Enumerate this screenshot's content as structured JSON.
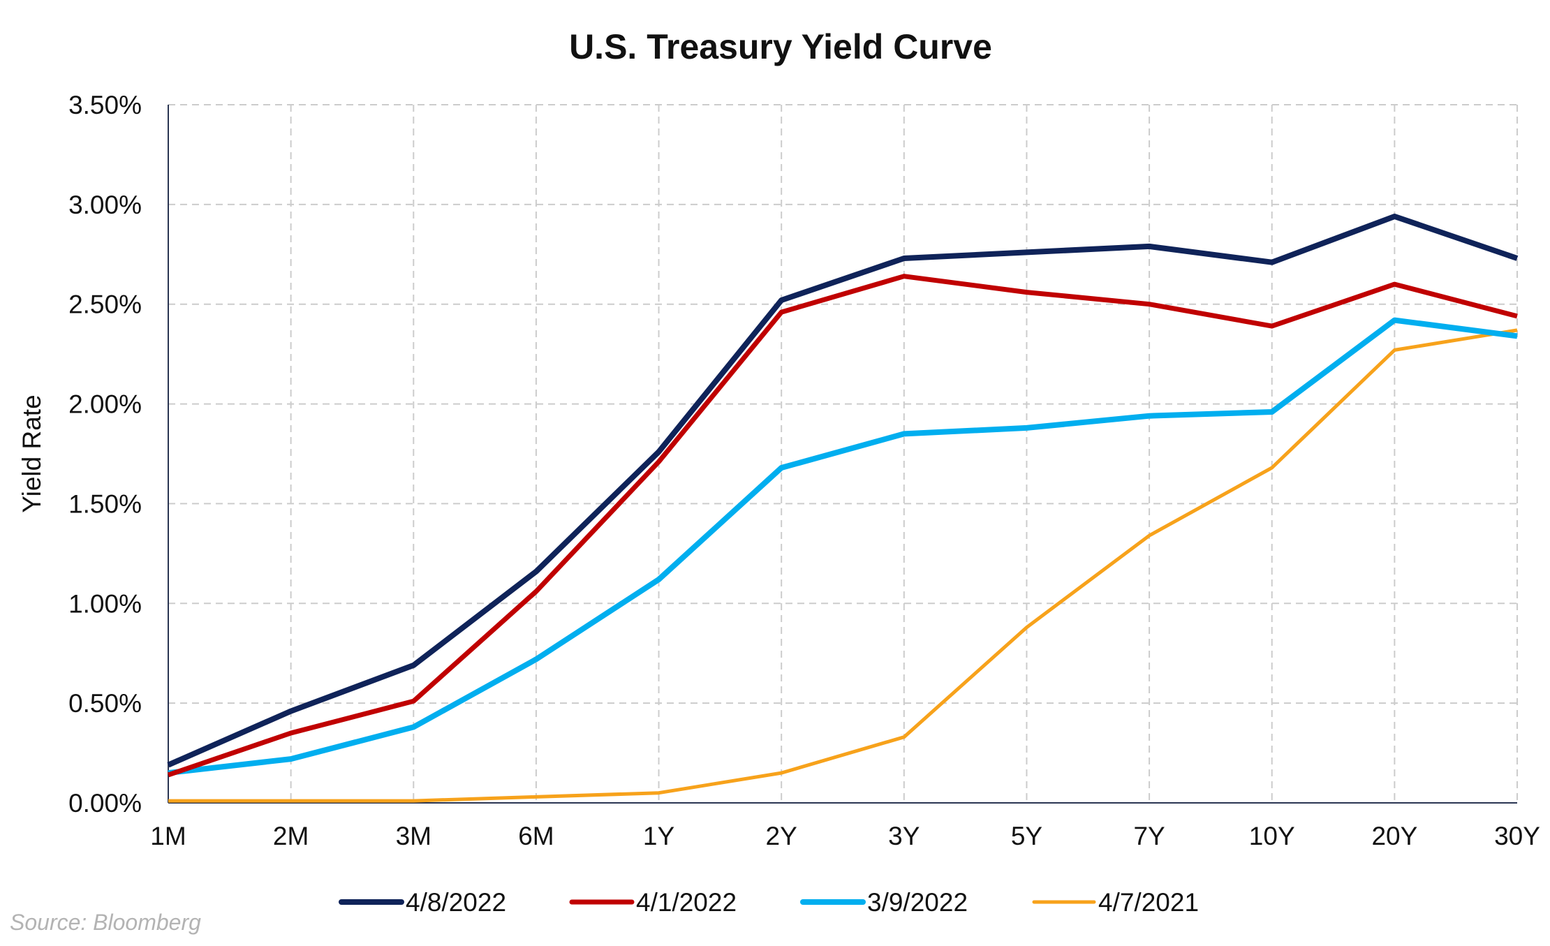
{
  "chart_data": {
    "type": "line",
    "title": "U.S. Treasury Yield Curve",
    "xlabel": "",
    "ylabel": "Yield Rate",
    "categories": [
      "1M",
      "2M",
      "3M",
      "6M",
      "1Y",
      "2Y",
      "3Y",
      "5Y",
      "7Y",
      "10Y",
      "20Y",
      "30Y"
    ],
    "ylim": [
      0,
      3.5
    ],
    "yticks": [
      0,
      0.5,
      1.0,
      1.5,
      2.0,
      2.5,
      3.0,
      3.5
    ],
    "ytick_labels": [
      "0.00%",
      "0.50%",
      "1.00%",
      "1.50%",
      "2.00%",
      "2.50%",
      "3.00%",
      "3.50%"
    ],
    "grid": true,
    "legend_position": "bottom",
    "series": [
      {
        "name": "4/8/2022",
        "color": "#0f2359",
        "values": [
          0.19,
          0.46,
          0.69,
          1.16,
          1.76,
          2.52,
          2.73,
          2.76,
          2.79,
          2.71,
          2.94,
          2.73
        ]
      },
      {
        "name": "4/1/2022",
        "color": "#c00000",
        "values": [
          0.14,
          0.35,
          0.51,
          1.06,
          1.71,
          2.46,
          2.64,
          2.56,
          2.5,
          2.39,
          2.6,
          2.44
        ]
      },
      {
        "name": "3/9/2022",
        "color": "#00aeef",
        "values": [
          0.15,
          0.22,
          0.38,
          0.72,
          1.12,
          1.68,
          1.85,
          1.88,
          1.94,
          1.96,
          2.42,
          2.34
        ]
      },
      {
        "name": "4/7/2021",
        "color": "#f7a21b",
        "values": [
          0.01,
          0.01,
          0.01,
          0.03,
          0.05,
          0.15,
          0.33,
          0.88,
          1.34,
          1.68,
          2.27,
          2.37
        ]
      }
    ]
  },
  "source": "Source: Bloomberg"
}
